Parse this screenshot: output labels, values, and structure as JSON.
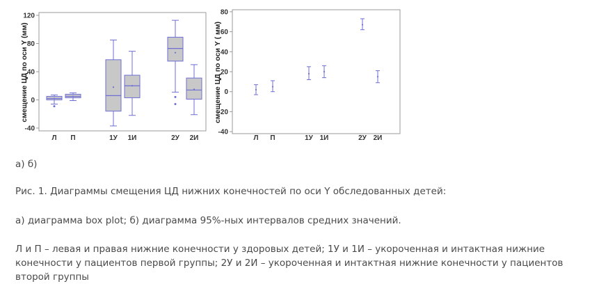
{
  "chart_data": [
    {
      "type": "box",
      "ylabel": "смещение ЦД по оси Y (мм)",
      "ylim": [
        -44,
        124
      ],
      "yticks": [
        -40,
        0,
        40,
        80,
        120
      ],
      "categories": [
        "Л",
        "П",
        "1У",
        "1И",
        "2У",
        "2И"
      ],
      "boxes": [
        {
          "category": "Л",
          "min": -6,
          "q1": 0,
          "median": 2,
          "q3": 5,
          "max": 7,
          "mean": 2,
          "outliers": [
            -9
          ]
        },
        {
          "category": "П",
          "min": -1,
          "q1": 3,
          "median": 5,
          "q3": 8,
          "max": 10,
          "mean": 5,
          "outliers": []
        },
        {
          "category": "1У",
          "min": -37,
          "q1": -16,
          "median": 6,
          "q3": 57,
          "max": 85,
          "mean": 18,
          "outliers": []
        },
        {
          "category": "1И",
          "min": -22,
          "q1": 3,
          "median": 20,
          "q3": 35,
          "max": 69,
          "mean": 20,
          "outliers": []
        },
        {
          "category": "2У",
          "min": 11,
          "q1": 55,
          "median": 73,
          "q3": 89,
          "max": 113,
          "mean": 67,
          "outliers": [
            4,
            -6
          ]
        },
        {
          "category": "2И",
          "min": -21,
          "q1": 1,
          "median": 14,
          "q3": 31,
          "max": 50,
          "mean": 15,
          "outliers": []
        }
      ],
      "grid": false
    },
    {
      "type": "errorbar",
      "ylabel": "смещение ЦД по оси Y ( мм)",
      "ylim": [
        -42,
        82
      ],
      "yticks": [
        -40,
        -20,
        0,
        20,
        40,
        60,
        80
      ],
      "categories": [
        "Л",
        "П",
        "1У",
        "1И",
        "2У",
        "2И"
      ],
      "intervals": [
        {
          "category": "Л",
          "lower": -3,
          "mean": 2,
          "upper": 7
        },
        {
          "category": "П",
          "lower": 0,
          "mean": 5,
          "upper": 11
        },
        {
          "category": "1У",
          "lower": 12,
          "mean": 18,
          "upper": 25
        },
        {
          "category": "1И",
          "lower": 14,
          "mean": 20,
          "upper": 26
        },
        {
          "category": "2У",
          "lower": 62,
          "mean": 67,
          "upper": 73
        },
        {
          "category": "2И",
          "lower": 9,
          "mean": 15,
          "upper": 21
        }
      ],
      "grid": false
    }
  ],
  "captions": {
    "ab": "а) б)",
    "figure": "Рис. 1. Диаграммы смещения ЦД нижних конечностей по оси Y обследованных детей:",
    "description": "а) диаграмма box plot; б) диаграмма 95%-ных интервалов средних значений.",
    "legend": "Л и П – левая и правая нижние конечности у здоровых детей; 1У и 1И – укороченная и интактная нижние конечности у пациентов первой группы; 2У и 2И – укороченная и интактная нижние конечности у пациентов второй группы"
  },
  "colors": {
    "frame": "#9a9a9a",
    "mark": "#6e6ed4",
    "box_fill": "#c8c8c8",
    "text": "#333333"
  }
}
